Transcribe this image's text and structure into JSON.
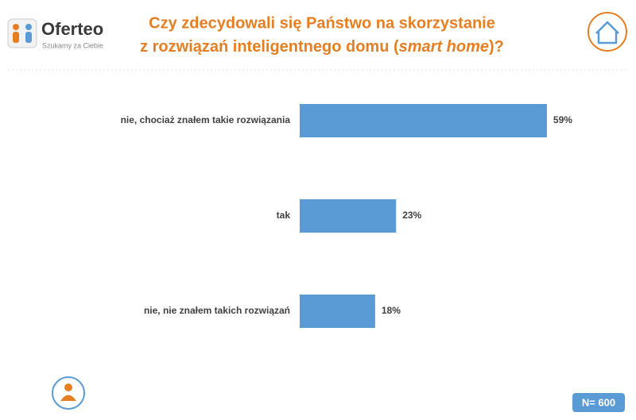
{
  "header": {
    "logo": "Oferteo",
    "tagline": "Szukamy za Ciebie"
  },
  "chart_data": {
    "type": "bar",
    "orientation": "horizontal",
    "title": {
      "line1": "Czy zdecydowali się Państwo na skorzystanie",
      "line2_start": "z rozwiązań inteligentnego domu (",
      "line2_italic": "smart home",
      "line2_end": ")?"
    },
    "categories": [
      "nie, chociaż znałem takie rozwiązania",
      "tak",
      "nie, nie znałem takich rozwiązań"
    ],
    "values": [
      59,
      23,
      18
    ],
    "value_labels": [
      "59%",
      "23%",
      "18%"
    ],
    "color": "#5b9bd5"
  },
  "footer": {
    "sample": "N= 600"
  }
}
